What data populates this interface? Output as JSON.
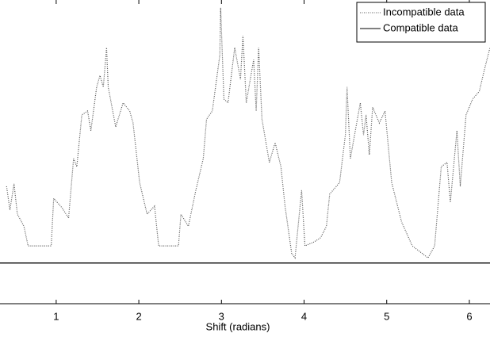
{
  "chart_data": {
    "type": "line",
    "xlabel": "Shift (radians)",
    "xlim": [
      0.32,
      6.25
    ],
    "ylim": [
      0,
      7
    ],
    "xticks": [
      1,
      2,
      3,
      4,
      5,
      6
    ],
    "legend": "upper right",
    "series": [
      {
        "name": "Incompatible data",
        "color": "#555555",
        "style": "dotted",
        "x": [
          0.4,
          0.44,
          0.49,
          0.53,
          0.61,
          0.66,
          0.94,
          0.97,
          1.07,
          1.15,
          1.21,
          1.25,
          1.31,
          1.38,
          1.42,
          1.49,
          1.53,
          1.57,
          1.61,
          1.63,
          1.72,
          1.81,
          1.89,
          1.93,
          2.01,
          2.1,
          2.19,
          2.24,
          2.48,
          2.51,
          2.6,
          2.69,
          2.78,
          2.82,
          2.89,
          2.98,
          2.99,
          3.03,
          3.08,
          3.16,
          3.23,
          3.26,
          3.3,
          3.39,
          3.42,
          3.45,
          3.49,
          3.58,
          3.65,
          3.72,
          3.77,
          3.85,
          3.89,
          3.97,
          4.01,
          4.12,
          4.2,
          4.27,
          4.31,
          4.43,
          4.5,
          4.52,
          4.56,
          4.68,
          4.72,
          4.75,
          4.79,
          4.83,
          4.91,
          4.98,
          5.06,
          5.18,
          5.31,
          5.5,
          5.58,
          5.66,
          5.73,
          5.77,
          5.85,
          5.89,
          5.96,
          6.04,
          6.12,
          6.19,
          6.25
        ],
        "values": [
          2.74,
          2.19,
          2.8,
          2.09,
          1.81,
          1.35,
          1.35,
          2.46,
          2.24,
          2.0,
          3.39,
          3.2,
          4.41,
          4.5,
          4.04,
          5.06,
          5.33,
          5.06,
          5.98,
          5.06,
          4.13,
          4.69,
          4.5,
          4.22,
          2.83,
          2.09,
          2.28,
          1.35,
          1.35,
          2.09,
          1.81,
          2.65,
          3.39,
          4.31,
          4.5,
          5.8,
          6.91,
          4.78,
          4.69,
          5.98,
          5.24,
          6.26,
          4.69,
          5.7,
          4.5,
          5.98,
          4.31,
          3.3,
          3.76,
          3.2,
          2.28,
          1.17,
          1.07,
          2.65,
          1.35,
          1.44,
          1.54,
          1.81,
          2.56,
          2.83,
          3.94,
          5.06,
          3.39,
          4.69,
          3.94,
          4.41,
          3.48,
          4.59,
          4.22,
          4.5,
          2.83,
          1.91,
          1.35,
          1.07,
          1.35,
          3.2,
          3.3,
          2.37,
          4.04,
          2.74,
          4.41,
          4.78,
          4.96,
          5.52,
          5.98
        ]
      },
      {
        "name": "Compatible data",
        "color": "#000000",
        "style": "solid",
        "x": [
          0.32,
          6.25
        ],
        "values": [
          0.95,
          0.95
        ]
      }
    ]
  }
}
